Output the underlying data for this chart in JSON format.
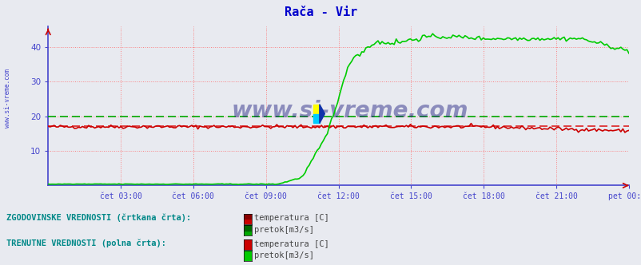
{
  "title": "Rača - Vir",
  "title_color": "#0000cc",
  "bg_color": "#e8eaf0",
  "plot_bg_color": "#e8eaf0",
  "grid_color": "#ff6666",
  "ylim": [
    0,
    46
  ],
  "yticks": [
    10,
    20,
    30,
    40
  ],
  "x_labels": [
    "čet 03:00",
    "čet 06:00",
    "čet 09:00",
    "čet 12:00",
    "čet 15:00",
    "čet 18:00",
    "čet 21:00",
    "pet 00:00"
  ],
  "hist_temp_value": 17.2,
  "hist_temp_color": "#dd2222",
  "hist_flow_value": 20.0,
  "hist_flow_color": "#00aa00",
  "temp_color": "#cc0000",
  "flow_color": "#00cc00",
  "watermark": "www.si-vreme.com",
  "watermark_color": "#1a1a7e",
  "legend_text1": "ZGODOVINSKE VREDNOSTI (črtkana črta):",
  "legend_text2": "TRENUTNE VREDNOSTI (polna črta):",
  "legend_color": "#008888",
  "tick_color": "#4444cc",
  "sidebar_text": "www.si-vreme.com",
  "n_points": 288
}
